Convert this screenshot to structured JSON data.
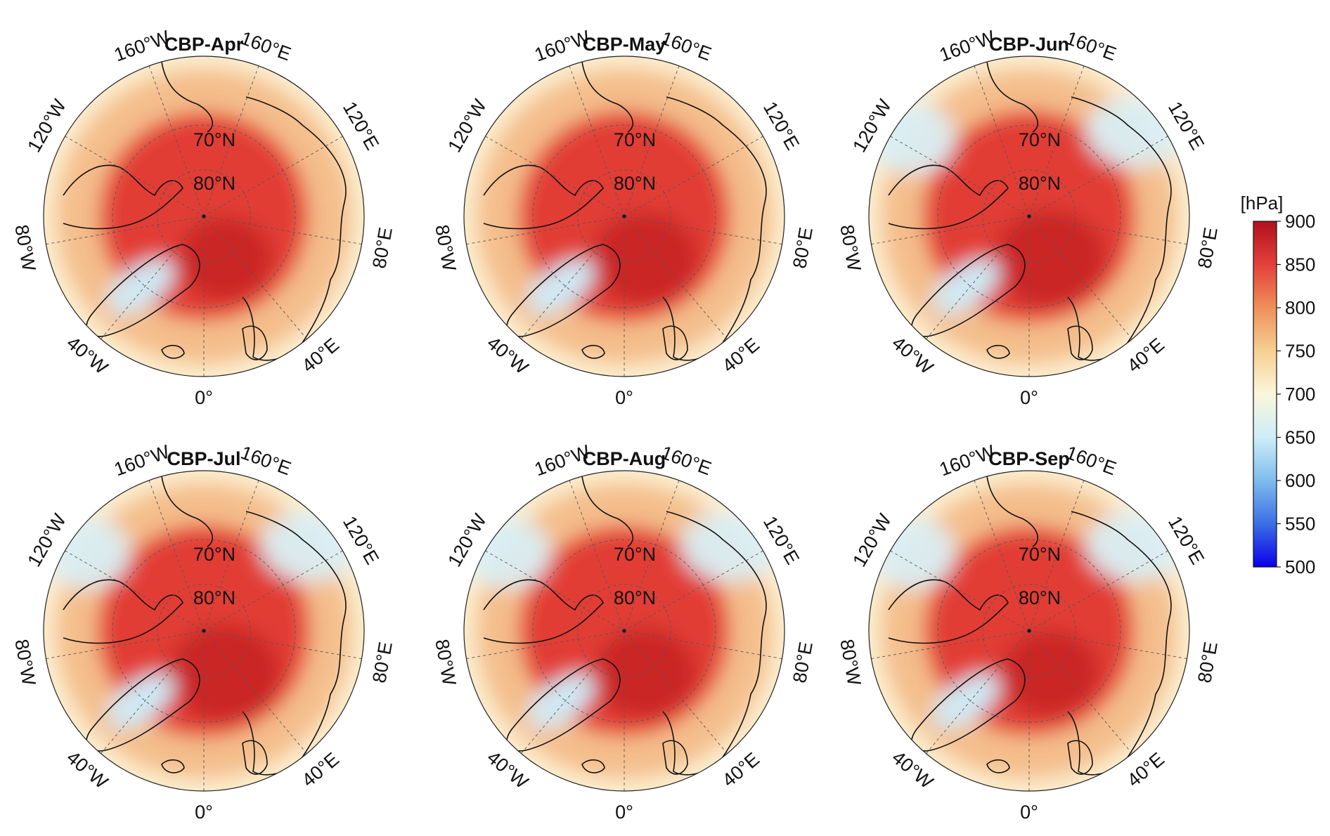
{
  "colorbar": {
    "unit": "[hPa]",
    "min": 500,
    "max": 900,
    "ticks": [
      "900",
      "850",
      "800",
      "750",
      "700",
      "650",
      "600",
      "550",
      "500"
    ],
    "colors": [
      "#0b00e8",
      "#3b6fe6",
      "#7fbcec",
      "#cdeef8",
      "#fbf6dc",
      "#f6cf92",
      "#ef8f5a",
      "#e3403a",
      "#b0121d"
    ]
  },
  "panels": [
    {
      "title": "CBP-Apr",
      "intensity": 0.85
    },
    {
      "title": "CBP-May",
      "intensity": 0.95
    },
    {
      "title": "CBP-Jun",
      "intensity": 1.0
    },
    {
      "title": "CBP-Jul",
      "intensity": 1.0
    },
    {
      "title": "CBP-Aug",
      "intensity": 0.92
    },
    {
      "title": "CBP-Sep",
      "intensity": 0.88
    }
  ],
  "lon_labels": [
    "0°",
    "40°E",
    "80°E",
    "120°E",
    "160°E",
    "160°W",
    "120°W",
    "80°W",
    "40°W"
  ],
  "lat_labels": [
    "70°N",
    "80°N"
  ]
}
